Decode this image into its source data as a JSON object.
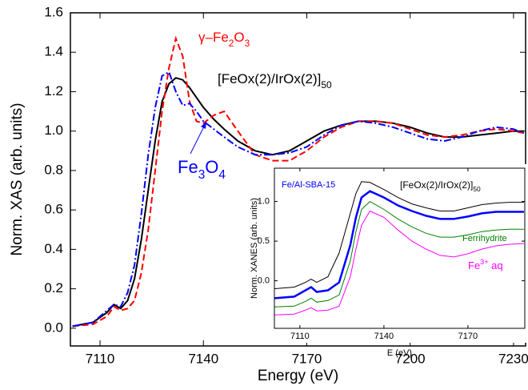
{
  "chart_data": [
    {
      "type": "line",
      "x_label": "Energy (eV)",
      "y_label": "Norm. XAS (arb. units)",
      "xlim": [
        7101.4,
        7233.5
      ],
      "ylim": [
        -0.09,
        1.6
      ],
      "xticks": [
        7110,
        7140,
        7170,
        7200,
        7230
      ],
      "yticks": [
        {
          "value": 0,
          "label": "0.0"
        },
        0.2,
        0.4,
        0.6,
        0.8,
        {
          "value": 1,
          "label": "1.0"
        },
        1.2,
        1.4,
        1.6
      ],
      "x": [
        7102,
        7108,
        7112,
        7114,
        7116,
        7118,
        7120,
        7122,
        7124,
        7126,
        7128,
        7130,
        7132,
        7134,
        7136,
        7138,
        7140,
        7143,
        7146,
        7150,
        7155,
        7160,
        7165,
        7170,
        7175,
        7180,
        7185,
        7190,
        7195,
        7200,
        7205,
        7210,
        7215,
        7220,
        7225,
        7230,
        7233
      ],
      "series": [
        {
          "name": [
            {
              "text": "[FeOx(2)/IrOx(2)]"
            },
            {
              "text": "50",
              "sub": true
            }
          ],
          "color": "#000000",
          "dash": "solid",
          "values": [
            0.01,
            0.03,
            0.08,
            0.12,
            0.1,
            0.14,
            0.25,
            0.45,
            0.7,
            0.95,
            1.15,
            1.24,
            1.27,
            1.26,
            1.22,
            1.17,
            1.12,
            1.06,
            1.01,
            0.95,
            0.9,
            0.88,
            0.9,
            0.95,
            1.0,
            1.03,
            1.05,
            1.05,
            1.04,
            1.02,
            0.99,
            0.97,
            0.97,
            0.98,
            0.99,
            1.0,
            1.0
          ]
        },
        {
          "name": [
            {
              "text": "γ–Fe"
            },
            {
              "text": "2",
              "sub": true
            },
            {
              "text": "O"
            },
            {
              "text": "3",
              "sub": true
            }
          ],
          "color": "#ff0000",
          "dash": "dashed",
          "values": [
            0.01,
            0.02,
            0.06,
            0.11,
            0.09,
            0.1,
            0.14,
            0.28,
            0.5,
            0.8,
            1.1,
            1.32,
            1.47,
            1.38,
            1.15,
            1.05,
            1.04,
            1.08,
            1.1,
            1.0,
            0.88,
            0.85,
            0.85,
            0.9,
            0.97,
            1.02,
            1.05,
            1.05,
            1.04,
            1.01,
            0.98,
            0.97,
            0.98,
            1.0,
            1.01,
            1.0,
            0.99
          ]
        },
        {
          "name": [
            {
              "text": "Fe"
            },
            {
              "text": "3",
              "sub": true
            },
            {
              "text": "O"
            },
            {
              "text": "4",
              "sub": true
            }
          ],
          "color": "#0000ff",
          "dash": "dashdot",
          "values": [
            0.01,
            0.03,
            0.09,
            0.12,
            0.11,
            0.18,
            0.32,
            0.58,
            0.88,
            1.12,
            1.28,
            1.3,
            1.2,
            1.13,
            1.14,
            1.1,
            1.05,
            1.01,
            0.97,
            0.92,
            0.88,
            0.88,
            0.89,
            0.92,
            0.98,
            1.03,
            1.05,
            1.04,
            1.02,
            0.99,
            0.96,
            0.95,
            0.97,
            1.0,
            1.02,
            1.01,
            0.99
          ]
        }
      ]
    },
    {
      "type": "line",
      "x_label": "E (eV)",
      "y_label": "Norm. XANES (arb. units)",
      "xlim": [
        7100.9,
        7190.3
      ],
      "ylim": [
        -0.6,
        1.42
      ],
      "xticks": [
        7110,
        7140,
        7170
      ],
      "yticks": [
        {
          "value": 0,
          "label": "0.0"
        },
        0.5,
        {
          "value": 1,
          "label": "1.0"
        }
      ],
      "x": [
        7101,
        7108,
        7112,
        7114,
        7116,
        7120,
        7124,
        7128,
        7130,
        7132,
        7135,
        7140,
        7145,
        7150,
        7155,
        7160,
        7165,
        7170,
        7175,
        7180,
        7185,
        7190
      ],
      "series": [
        {
          "name": [
            {
              "text": "[FeOx(2)/IrOx(2)]"
            },
            {
              "text": "50",
              "sub": true
            }
          ],
          "color": "#000000",
          "dash": "solid",
          "width": 1,
          "values": [
            -0.1,
            -0.08,
            -0.02,
            0.02,
            -0.02,
            0.05,
            0.35,
            0.85,
            1.1,
            1.25,
            1.24,
            1.15,
            1.05,
            0.97,
            0.92,
            0.88,
            0.88,
            0.92,
            0.96,
            0.98,
            0.99,
            0.99
          ]
        },
        {
          "name": [
            {
              "text": "Fe/Al-SBA-15"
            }
          ],
          "color": "#0000ff",
          "dash": "solid",
          "width": 2.5,
          "values": [
            -0.22,
            -0.2,
            -0.12,
            -0.08,
            -0.14,
            -0.12,
            -0.02,
            0.45,
            0.8,
            1.05,
            1.13,
            1.05,
            0.95,
            0.88,
            0.82,
            0.78,
            0.78,
            0.81,
            0.85,
            0.87,
            0.87,
            0.87
          ]
        },
        {
          "name": [
            {
              "text": "Ferrihydrite"
            }
          ],
          "color": "#008000",
          "dash": "solid",
          "width": 1,
          "values": [
            -0.33,
            -0.32,
            -0.26,
            -0.22,
            -0.27,
            -0.25,
            -0.18,
            0.25,
            0.62,
            0.9,
            1.0,
            0.9,
            0.78,
            0.68,
            0.6,
            0.55,
            0.55,
            0.58,
            0.62,
            0.64,
            0.65,
            0.65
          ]
        },
        {
          "name": [
            {
              "text": "Fe"
            },
            {
              "text": "3+",
              "sup": true
            },
            {
              "text": " aq"
            }
          ],
          "color": "#ff00ff",
          "dash": "solid",
          "width": 1,
          "values": [
            -0.43,
            -0.42,
            -0.37,
            -0.34,
            -0.38,
            -0.37,
            -0.32,
            0.05,
            0.4,
            0.7,
            0.88,
            0.8,
            0.64,
            0.5,
            0.4,
            0.32,
            0.3,
            0.34,
            0.4,
            0.44,
            0.46,
            0.47
          ]
        }
      ]
    }
  ]
}
